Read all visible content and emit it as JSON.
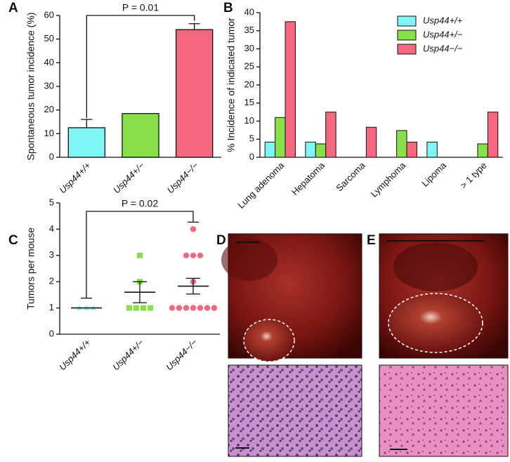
{
  "chart_data": [
    {
      "type": "bar",
      "panel": "A",
      "ylabel": "Spontaneous tumor incidence (%)",
      "categories": [
        "Usp44+/+",
        "Usp44+/−",
        "Usp44−/−"
      ],
      "values": [
        12.5,
        18.5,
        54
      ],
      "errors": [
        3.5,
        null,
        2.5
      ],
      "colors": [
        "#7ff5f5",
        "#86e04a",
        "#f5687f"
      ],
      "ylim": [
        0,
        60
      ],
      "yticks": [
        0,
        10,
        20,
        30,
        40,
        50,
        60
      ],
      "annotation": "P = 0.01"
    },
    {
      "type": "grouped-bar",
      "panel": "B",
      "ylabel": "% Incidence of indicated tumor",
      "categories": [
        "Lung adenoma",
        "Hepatoma",
        "Sarcoma",
        "Lymphoma",
        "Lipoma",
        "> 1 type"
      ],
      "series": [
        {
          "name": "Usp44+/+",
          "color": "#7ff5f5",
          "values": [
            4.2,
            4.2,
            0,
            0,
            4.2,
            0
          ]
        },
        {
          "name": "Usp44+/−",
          "color": "#86e04a",
          "values": [
            11,
            3.7,
            0,
            7.4,
            0,
            3.7
          ]
        },
        {
          "name": "Usp44−/−",
          "color": "#f5687f",
          "values": [
            37.5,
            12.5,
            8.3,
            4.2,
            0,
            12.5
          ]
        }
      ],
      "ylim": [
        0,
        40
      ],
      "yticks": [
        0,
        5,
        10,
        15,
        20,
        25,
        30,
        35,
        40
      ],
      "legend": "top-right"
    },
    {
      "type": "dot",
      "panel": "C",
      "ylabel": "Tumors per mouse",
      "categories": [
        "Usp44+/+",
        "Usp44+/−",
        "Usp44−/−"
      ],
      "groups": [
        {
          "color": "#7ff5f5",
          "shape": "triangle",
          "values": [
            1,
            1,
            1
          ],
          "mean": 1,
          "sem": 0
        },
        {
          "color": "#86e04a",
          "shape": "square",
          "values": [
            1,
            1,
            1,
            1,
            2,
            3
          ],
          "mean": 1.6,
          "sem": 0.4
        },
        {
          "color": "#f5687f",
          "shape": "circle",
          "values": [
            1,
            1,
            1,
            1,
            1,
            1,
            1,
            2,
            3,
            3,
            3,
            4
          ],
          "mean": 1.83,
          "sem": 0.3
        }
      ],
      "ylim": [
        0,
        5
      ],
      "yticks": [
        0,
        1,
        2,
        3,
        4,
        5
      ],
      "annotation": "P = 0.02"
    }
  ],
  "photo_panels": [
    "D",
    "E"
  ]
}
